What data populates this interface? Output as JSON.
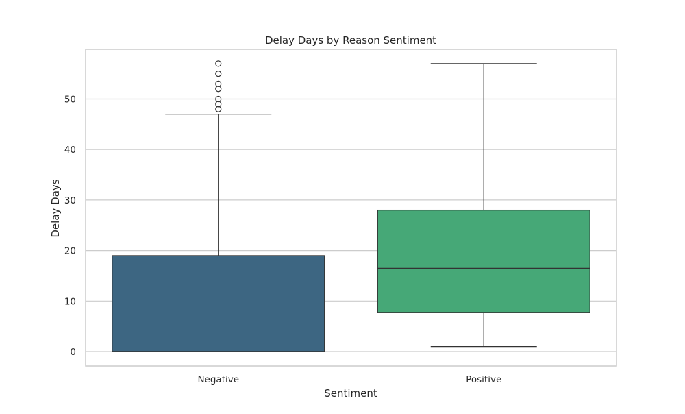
{
  "chart_data": {
    "type": "box",
    "title": "Delay Days by Reason Sentiment",
    "xlabel": "Sentiment",
    "ylabel": "Delay Days",
    "ylim": [
      -3,
      60
    ],
    "yticks": [
      0,
      10,
      20,
      30,
      40,
      50
    ],
    "grid": "horizontal",
    "categories": [
      "Negative",
      "Positive"
    ],
    "boxes": [
      {
        "category": "Negative",
        "color": "#3d6682",
        "whisker_low": 0,
        "q1": 0,
        "median": 0,
        "q3": 19,
        "whisker_high": 47,
        "outliers": [
          48,
          49,
          50,
          52,
          53,
          55,
          57
        ]
      },
      {
        "category": "Positive",
        "color": "#46a877",
        "whisker_low": 1,
        "q1": 7.75,
        "median": 16.5,
        "q3": 28,
        "whisker_high": 57,
        "outliers": []
      }
    ]
  }
}
